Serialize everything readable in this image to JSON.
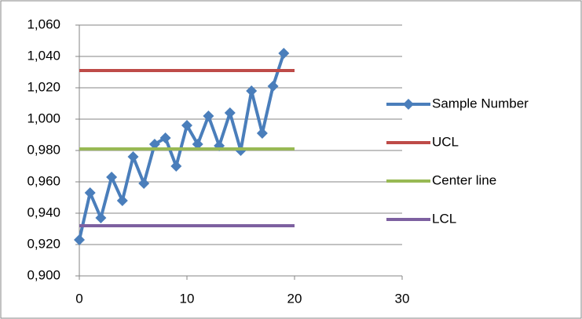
{
  "chart_data": {
    "type": "line",
    "xlim": [
      0,
      30
    ],
    "xticks": [
      0,
      10,
      20,
      30
    ],
    "ylim": [
      0.9,
      1.06
    ],
    "yticks": [
      {
        "value": 0.9,
        "label": "0,900"
      },
      {
        "value": 0.92,
        "label": "0,920"
      },
      {
        "value": 0.94,
        "label": "0,940"
      },
      {
        "value": 0.96,
        "label": "0,960"
      },
      {
        "value": 0.98,
        "label": "0,980"
      },
      {
        "value": 1.0,
        "label": "1,000"
      },
      {
        "value": 1.02,
        "label": "1,020"
      },
      {
        "value": 1.04,
        "label": "1,040"
      },
      {
        "value": 1.06,
        "label": "1,060"
      }
    ],
    "grid": true,
    "legend": "right",
    "series": [
      {
        "name": "Sample Number",
        "color": "#4a7ebb",
        "markers": true,
        "x": [
          0,
          1,
          2,
          3,
          4,
          5,
          6,
          7,
          8,
          9,
          10,
          11,
          12,
          13,
          14,
          15,
          16,
          17,
          18,
          19
        ],
        "values": [
          0.923,
          0.953,
          0.937,
          0.963,
          0.948,
          0.976,
          0.959,
          0.984,
          0.988,
          0.97,
          0.996,
          0.984,
          1.002,
          0.983,
          1.004,
          0.98,
          1.018,
          0.991,
          1.021,
          1.042
        ]
      },
      {
        "name": "UCL",
        "color": "#be4b48",
        "markers": false,
        "x": [
          0,
          20
        ],
        "values": [
          1.031,
          1.031
        ]
      },
      {
        "name": "Center line",
        "color": "#98b954",
        "markers": false,
        "x": [
          0,
          20
        ],
        "values": [
          0.981,
          0.981
        ]
      },
      {
        "name": "LCL",
        "color": "#7d60a0",
        "markers": false,
        "x": [
          0,
          20
        ],
        "values": [
          0.932,
          0.932
        ]
      }
    ]
  }
}
